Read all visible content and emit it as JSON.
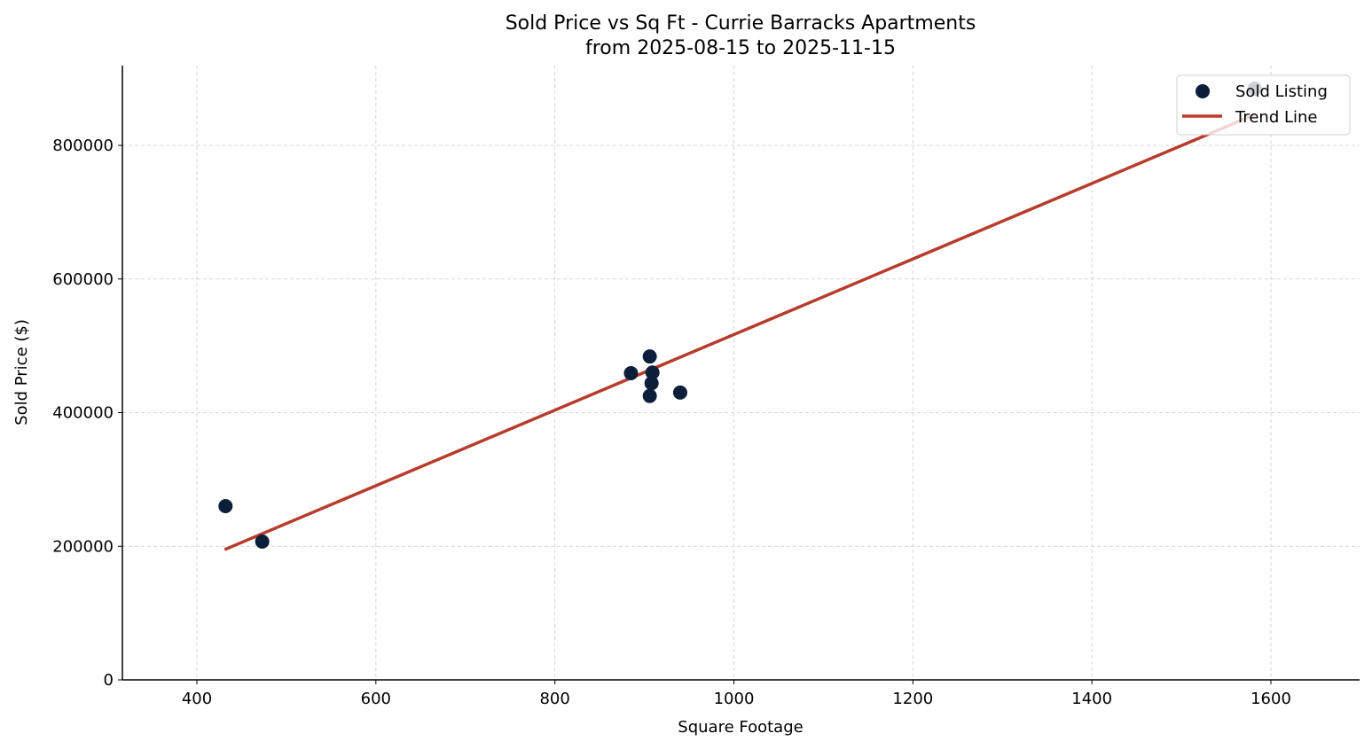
{
  "chart_data": {
    "type": "scatter",
    "title": "Sold Price vs Sq Ft - Currie Barracks Apartments",
    "subtitle": "from 2025-08-15 to 2025-11-15",
    "xlabel": "Square Footage",
    "ylabel": "Sold Price ($)",
    "xlim": [
      316,
      1700
    ],
    "ylim": [
      0,
      920000
    ],
    "x_ticks": [
      400,
      600,
      800,
      1000,
      1200,
      1400,
      1600
    ],
    "y_ticks": [
      0,
      200000,
      400000,
      600000,
      800000
    ],
    "x_tick_labels": [
      "400",
      "600",
      "800",
      "1000",
      "1200",
      "1400",
      "1600"
    ],
    "y_tick_labels": [
      "0",
      "200000",
      "400000",
      "600000",
      "800000"
    ],
    "grid": true,
    "legend_position": "upper right",
    "series": [
      {
        "name": "Sold Listing",
        "kind": "scatter",
        "color": "#0b1f3a",
        "points": [
          {
            "x": 432,
            "y": 260000
          },
          {
            "x": 473,
            "y": 207000
          },
          {
            "x": 885,
            "y": 459000
          },
          {
            "x": 906,
            "y": 484000
          },
          {
            "x": 909,
            "y": 460000
          },
          {
            "x": 908,
            "y": 444000
          },
          {
            "x": 906,
            "y": 425000
          },
          {
            "x": 940,
            "y": 430000
          },
          {
            "x": 1582,
            "y": 885000
          }
        ]
      },
      {
        "name": "Trend Line",
        "kind": "line",
        "color": "#b83c2c",
        "points": [
          {
            "x": 431,
            "y": 195000
          },
          {
            "x": 1582,
            "y": 846000
          }
        ]
      }
    ]
  }
}
